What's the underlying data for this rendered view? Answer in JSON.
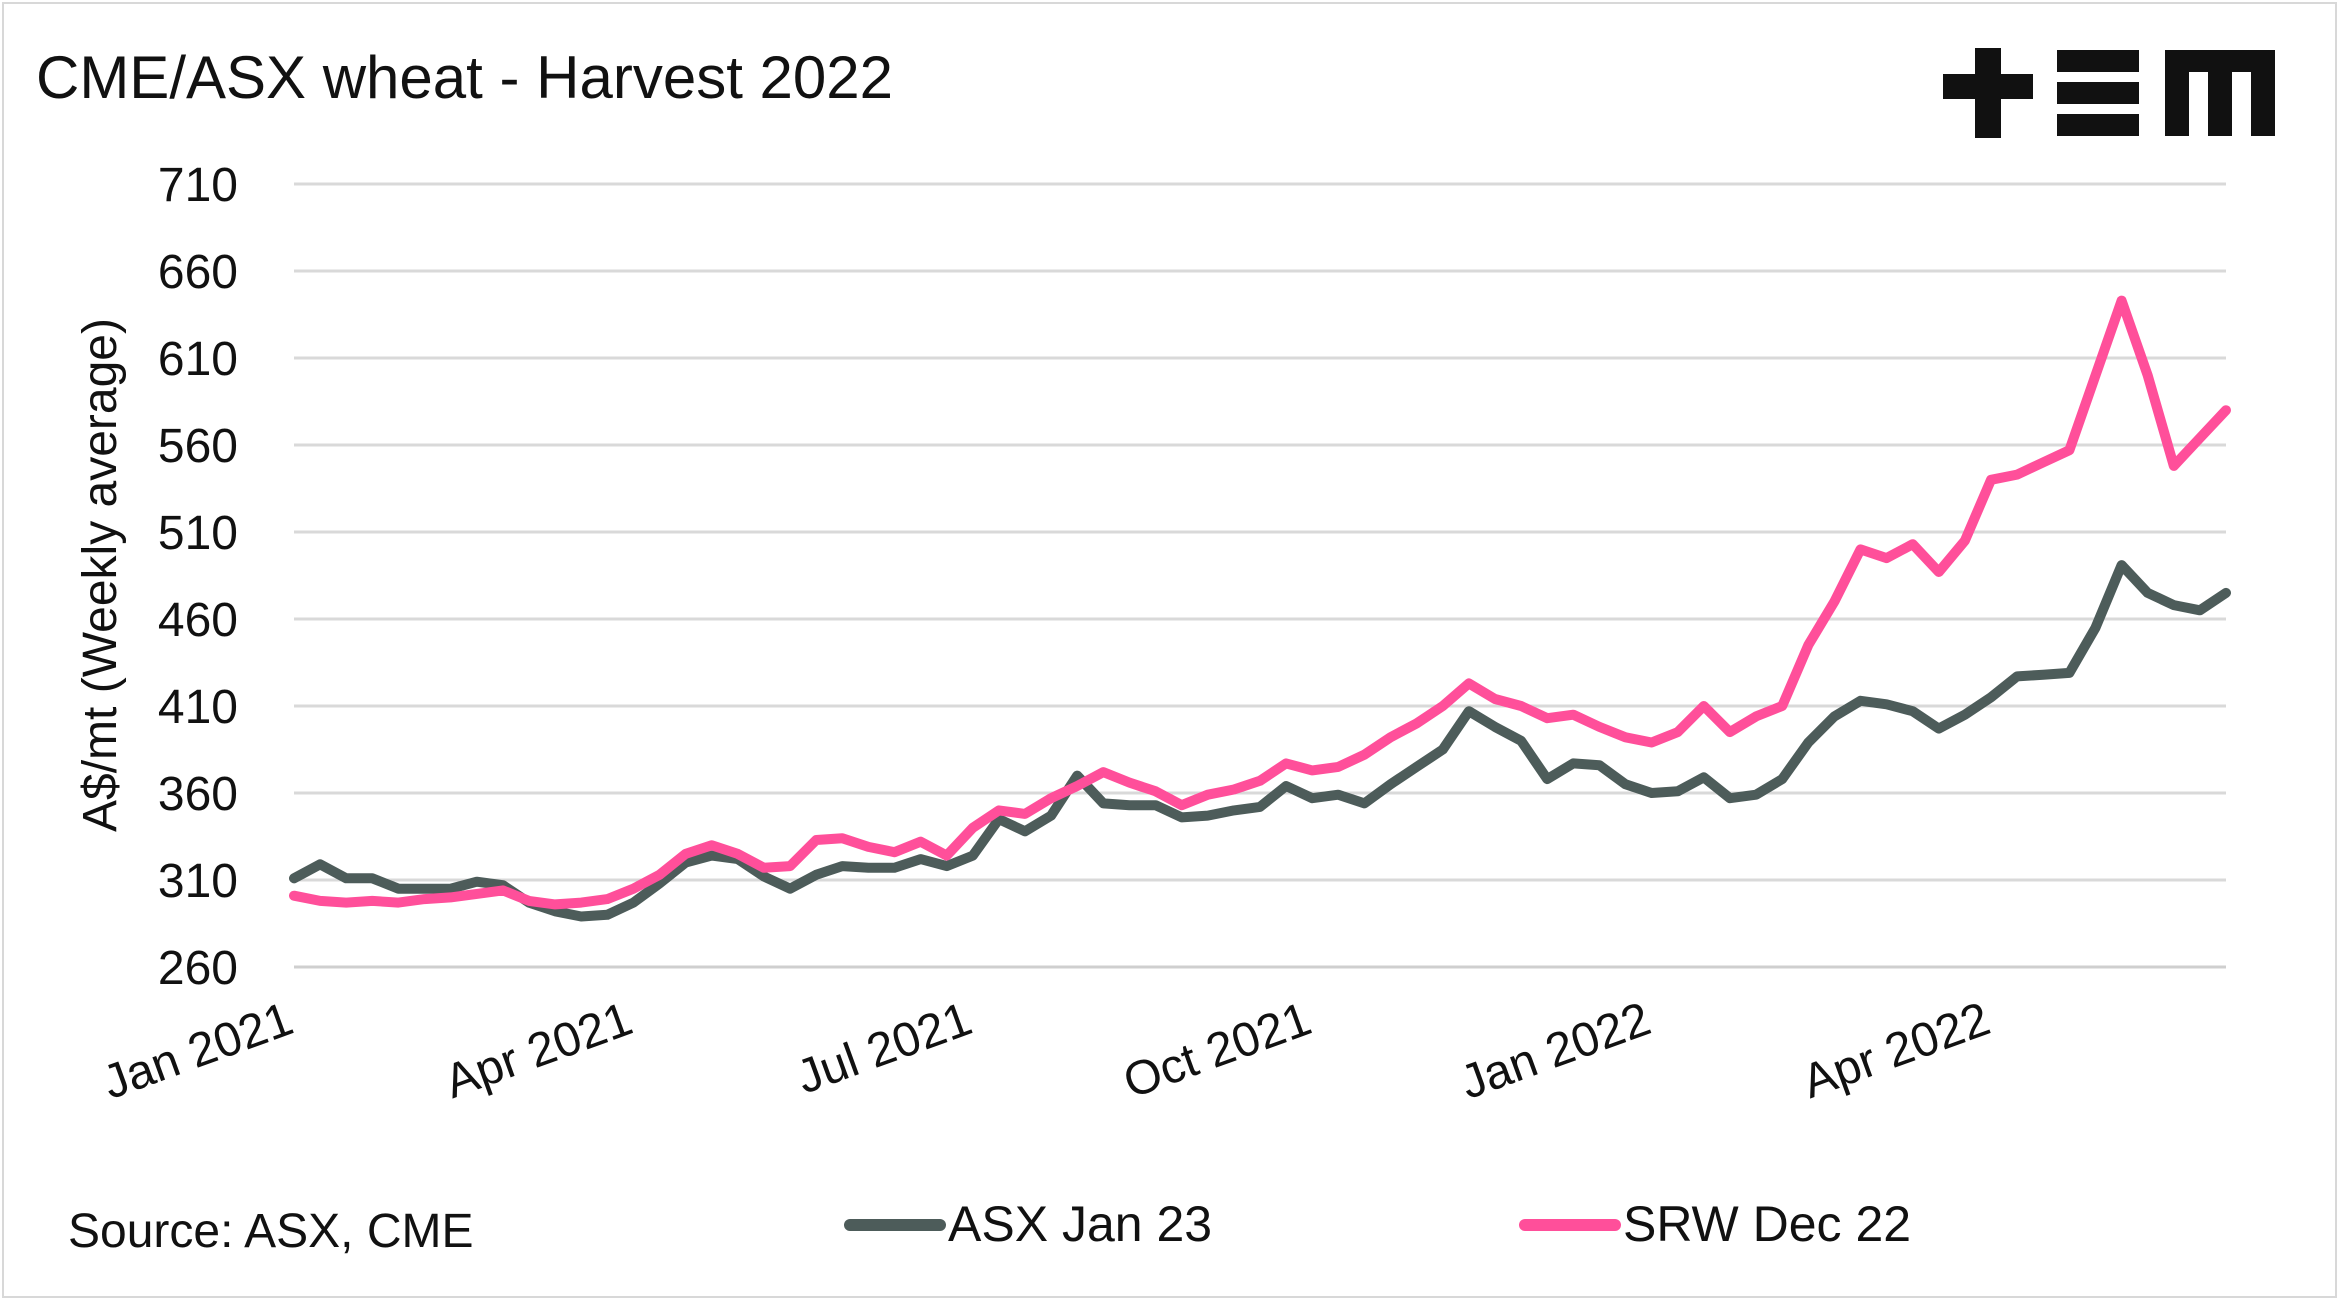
{
  "chart_data": {
    "type": "line",
    "title": "CME/ASX wheat - Harvest 2022",
    "ylabel": "A$/mt (Weekly average)",
    "xlabel": "",
    "ylim": [
      260,
      710
    ],
    "yticks": [
      260,
      310,
      360,
      410,
      460,
      510,
      560,
      610,
      660,
      710
    ],
    "xtick_labels": [
      "Jan 2021",
      "Apr 2021",
      "Jul 2021",
      "Oct 2021",
      "Jan 2022",
      "Apr 2022"
    ],
    "xtick_weeks": [
      0,
      13,
      26,
      39,
      52,
      65
    ],
    "x_unit": "weeks from Jan 2021",
    "grid": true,
    "legend_position": "bottom",
    "source": "Source: ASX, CME",
    "logo": "+EM",
    "series": [
      {
        "name": "ASX Jan 23",
        "color": "#4d5c5a",
        "x": [
          0,
          1,
          2,
          3,
          4,
          5,
          6,
          7,
          8,
          9,
          10,
          11,
          12,
          13,
          14,
          15,
          16,
          17,
          18,
          19,
          20,
          21,
          22,
          23,
          24,
          25,
          26,
          27,
          28,
          29,
          30,
          31,
          32,
          33,
          34,
          35,
          36,
          37,
          38,
          39,
          40,
          41,
          42,
          43,
          44,
          45,
          46,
          47,
          48,
          49,
          50,
          51,
          52,
          53,
          54,
          55,
          56,
          57,
          58,
          59,
          60,
          61,
          62,
          63,
          64,
          65,
          66,
          67,
          68,
          69,
          70,
          71,
          72,
          73,
          74
        ],
        "values": [
          311,
          319,
          311,
          311,
          305,
          305,
          305,
          309,
          307,
          297,
          292,
          289,
          290,
          297,
          308,
          320,
          324,
          322,
          312,
          305,
          313,
          318,
          317,
          317,
          322,
          318,
          324,
          345,
          338,
          347,
          370,
          354,
          353,
          353,
          346,
          347,
          350,
          352,
          364,
          357,
          359,
          354,
          365,
          375,
          385,
          407,
          398,
          390,
          368,
          377,
          376,
          365,
          360,
          361,
          369,
          357,
          359,
          368,
          389,
          404,
          413,
          411,
          407,
          397,
          405,
          415,
          427,
          428,
          429,
          455,
          491,
          475,
          468,
          465,
          475
        ]
      },
      {
        "name": "SRW Dec 22",
        "color": "#ff4f9a",
        "x": [
          0,
          1,
          2,
          3,
          4,
          5,
          6,
          7,
          8,
          9,
          10,
          11,
          12,
          13,
          14,
          15,
          16,
          17,
          18,
          19,
          20,
          21,
          22,
          23,
          24,
          25,
          26,
          27,
          28,
          29,
          30,
          31,
          32,
          33,
          34,
          35,
          36,
          37,
          38,
          39,
          40,
          41,
          42,
          43,
          44,
          45,
          46,
          47,
          48,
          49,
          50,
          51,
          52,
          53,
          54,
          55,
          56,
          57,
          58,
          59,
          60,
          61,
          62,
          63,
          64,
          65,
          66,
          67,
          68,
          69,
          70,
          71,
          72,
          73,
          74
        ],
        "values": [
          301,
          298,
          297,
          298,
          297,
          299,
          300,
          302,
          304,
          298,
          296,
          297,
          299,
          305,
          313,
          325,
          330,
          325,
          317,
          318,
          333,
          334,
          329,
          326,
          332,
          324,
          340,
          350,
          348,
          357,
          364,
          372,
          366,
          361,
          353,
          359,
          362,
          367,
          377,
          373,
          375,
          382,
          392,
          400,
          410,
          423,
          414,
          410,
          403,
          405,
          398,
          392,
          389,
          395,
          410,
          395,
          404,
          410,
          445,
          470,
          500,
          495,
          503,
          487,
          505,
          540,
          543,
          550,
          557,
          600,
          643,
          600,
          548,
          564,
          580
        ]
      }
    ]
  }
}
